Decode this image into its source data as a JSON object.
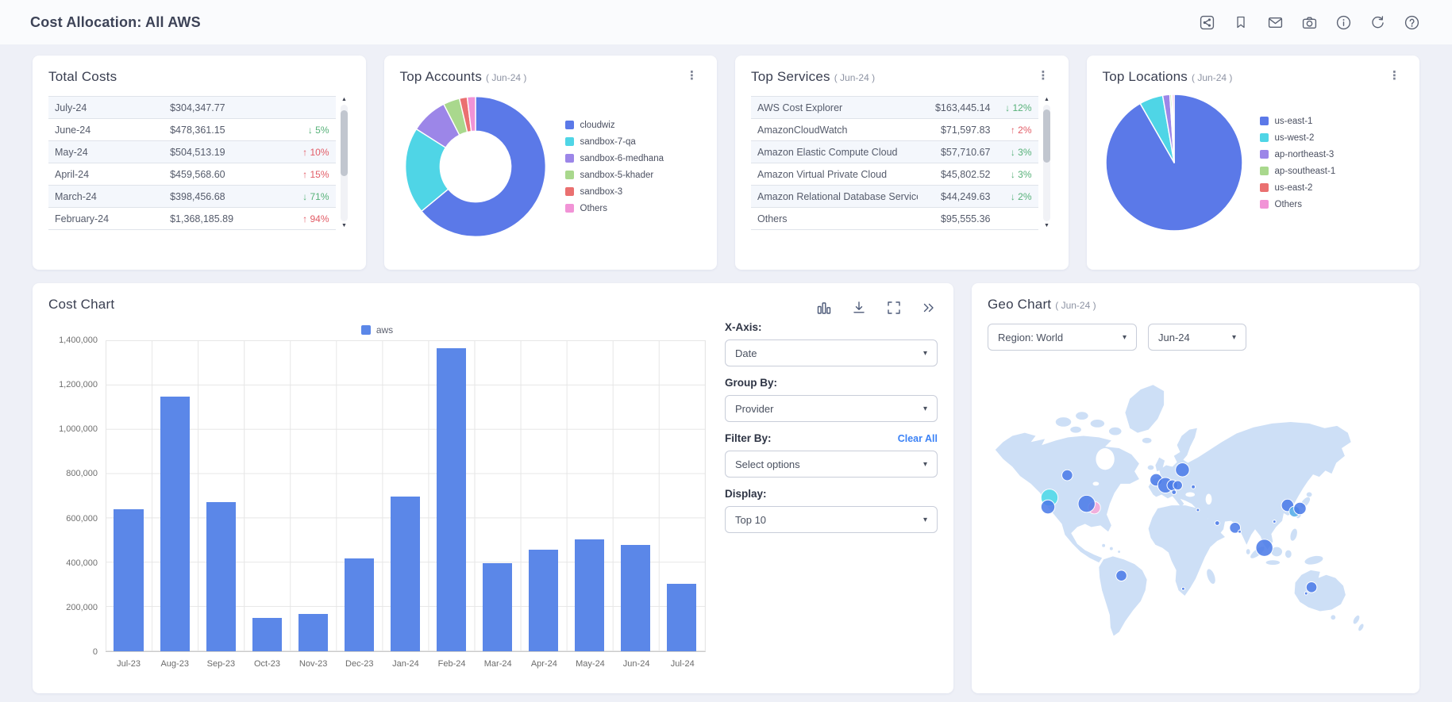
{
  "page": {
    "title": "Cost Allocation: All AWS"
  },
  "header": {
    "icons": [
      "share",
      "bookmark",
      "mail",
      "camera",
      "info",
      "refresh",
      "help"
    ]
  },
  "colors": {
    "accent_blue": "#5b87e8",
    "donut_blue": "#5b79e8",
    "cyan": "#4fd5e6",
    "purple": "#9c86e8",
    "green": "#a9d88d",
    "red": "#ea7070",
    "pink": "#f193d6",
    "positive_green": "#56b178",
    "negative_red": "#e25c66",
    "link_blue": "#3b82f6",
    "bubble_blue": "#4c7ce8",
    "bubble_cyan": "#4fd9e8",
    "bubble_pink": "#f6a8d8",
    "bubble_lightblue": "#55aee8",
    "land": "#cddff6"
  },
  "total_costs": {
    "title": "Total Costs",
    "rows": [
      {
        "month": "July-24",
        "amount": "$304,347.77",
        "change": "",
        "dir": "none"
      },
      {
        "month": "June-24",
        "amount": "$478,361.15",
        "change": "5%",
        "dir": "down"
      },
      {
        "month": "May-24",
        "amount": "$504,513.19",
        "change": "10%",
        "dir": "up"
      },
      {
        "month": "April-24",
        "amount": "$459,568.60",
        "change": "15%",
        "dir": "up"
      },
      {
        "month": "March-24",
        "amount": "$398,456.68",
        "change": "71%",
        "dir": "down"
      },
      {
        "month": "February-24",
        "amount": "$1,368,185.89",
        "change": "94%",
        "dir": "up"
      }
    ]
  },
  "top_accounts": {
    "title": "Top Accounts",
    "period": "( Jun-24 )"
  },
  "top_services": {
    "title": "Top Services",
    "period": "( Jun-24 )",
    "rows": [
      {
        "service": "AWS Cost Explorer",
        "amount": "$163,445.14",
        "change": "12%",
        "dir": "down"
      },
      {
        "service": "AmazonCloudWatch",
        "amount": "$71,597.83",
        "change": "2%",
        "dir": "up"
      },
      {
        "service": "Amazon Elastic Compute Cloud",
        "amount": "$57,710.67",
        "change": "3%",
        "dir": "down"
      },
      {
        "service": "Amazon Virtual Private Cloud",
        "amount": "$45,802.52",
        "change": "3%",
        "dir": "down"
      },
      {
        "service": "Amazon Relational Database Service",
        "amount": "$44,249.63",
        "change": "2%",
        "dir": "down"
      },
      {
        "service": "Others",
        "amount": "$95,555.36",
        "change": "",
        "dir": "none"
      }
    ]
  },
  "top_locations": {
    "title": "Top Locations",
    "period": "( Jun-24 )"
  },
  "cost_chart": {
    "title": "Cost Chart",
    "legend": "aws",
    "tools": [
      "bar-chart",
      "download",
      "fullscreen",
      "collapse"
    ],
    "controls": {
      "x_axis_label": "X-Axis:",
      "x_axis_value": "Date",
      "group_by_label": "Group By:",
      "group_by_value": "Provider",
      "filter_by_label": "Filter By:",
      "clear_all": "Clear All",
      "filter_value": "Select options",
      "display_label": "Display:",
      "display_value": "Top 10"
    }
  },
  "geo_chart": {
    "title": "Geo Chart",
    "period": "( Jun-24 )",
    "region_value": "Region: World",
    "month_value": "Jun-24"
  },
  "chart_data": [
    {
      "id": "cost_bar",
      "type": "bar",
      "title": "Cost Chart",
      "legend": [
        "aws"
      ],
      "categories": [
        "Jul-23",
        "Aug-23",
        "Sep-23",
        "Oct-23",
        "Nov-23",
        "Dec-23",
        "Jan-24",
        "Feb-24",
        "Mar-24",
        "Apr-24",
        "May-24",
        "Jun-24",
        "Jul-24"
      ],
      "values": [
        640000,
        1150000,
        672000,
        150000,
        170000,
        420000,
        700000,
        1368186,
        398457,
        459569,
        504513,
        478361,
        304348
      ],
      "ylim": [
        0,
        1400000
      ],
      "y_ticks": [
        "1,400,000",
        "1,200,000",
        "1,000,000",
        "800,000",
        "600,000",
        "400,000",
        "200,000",
        "0"
      ],
      "grid": true,
      "legend_position": "top-center"
    },
    {
      "id": "accounts_donut",
      "type": "donut",
      "title": "Top Accounts ( Jun-24 )",
      "labels": [
        "cloudwiz",
        "sandbox-7-qa",
        "sandbox-6-medhana",
        "sandbox-5-khader",
        "sandbox-3",
        "Others"
      ],
      "values": [
        64,
        20,
        8.5,
        3.8,
        1.8,
        1.9
      ],
      "colors": [
        "#5b79e8",
        "#4fd5e6",
        "#9c86e8",
        "#a9d88d",
        "#ea7070",
        "#f193d6"
      ],
      "legend_position": "right"
    },
    {
      "id": "locations_pie",
      "type": "pie",
      "title": "Top Locations ( Jun-24 )",
      "labels": [
        "us-east-1",
        "us-west-2",
        "ap-northeast-3",
        "ap-southeast-1",
        "us-east-2",
        "Others"
      ],
      "values": [
        91.7,
        5.6,
        1.7,
        0.4,
        0.2,
        0.4
      ],
      "colors": [
        "#5b79e8",
        "#4fd5e6",
        "#9c86e8",
        "#a9d88d",
        "#ea7070",
        "#f193d6"
      ],
      "legend_position": "right"
    },
    {
      "id": "geo_bubbles",
      "type": "geo-bubble",
      "title": "Geo Chart ( Jun-24 )",
      "points": [
        {
          "x": 103,
          "y": 147,
          "r": 7,
          "color": "blue"
        },
        {
          "x": 80,
          "y": 176,
          "r": 11,
          "color": "cyan"
        },
        {
          "x": 78,
          "y": 188,
          "r": 9,
          "color": "blue"
        },
        {
          "x": 138,
          "y": 189,
          "r": 8,
          "color": "pink"
        },
        {
          "x": 128,
          "y": 184,
          "r": 11,
          "color": "blue"
        },
        {
          "x": 218,
          "y": 153,
          "r": 8,
          "color": "blue"
        },
        {
          "x": 230,
          "y": 160,
          "r": 10,
          "color": "blue"
        },
        {
          "x": 239,
          "y": 160,
          "r": 7,
          "color": "blue"
        },
        {
          "x": 246,
          "y": 160,
          "r": 6,
          "color": "blue"
        },
        {
          "x": 241,
          "y": 169,
          "r": 3,
          "color": "blue"
        },
        {
          "x": 252,
          "y": 140,
          "r": 9,
          "color": "blue"
        },
        {
          "x": 266,
          "y": 162,
          "r": 2.5,
          "color": "blue"
        },
        {
          "x": 272,
          "y": 192,
          "r": 2,
          "color": "blue"
        },
        {
          "x": 297,
          "y": 209,
          "r": 3,
          "color": "blue"
        },
        {
          "x": 320,
          "y": 215,
          "r": 7,
          "color": "blue"
        },
        {
          "x": 326,
          "y": 220,
          "r": 2,
          "color": "blue"
        },
        {
          "x": 371,
          "y": 207,
          "r": 2,
          "color": "blue"
        },
        {
          "x": 388,
          "y": 186,
          "r": 8,
          "color": "blue"
        },
        {
          "x": 397,
          "y": 194,
          "r": 7,
          "color": "lightblue"
        },
        {
          "x": 404,
          "y": 190,
          "r": 8,
          "color": "blue"
        },
        {
          "x": 358,
          "y": 241,
          "r": 11,
          "color": "blue"
        },
        {
          "x": 173,
          "y": 277,
          "r": 7,
          "color": "blue"
        },
        {
          "x": 253,
          "y": 294,
          "r": 2,
          "color": "blue"
        },
        {
          "x": 419,
          "y": 292,
          "r": 7,
          "color": "blue"
        },
        {
          "x": 412,
          "y": 300,
          "r": 2,
          "color": "blue"
        }
      ]
    }
  ]
}
